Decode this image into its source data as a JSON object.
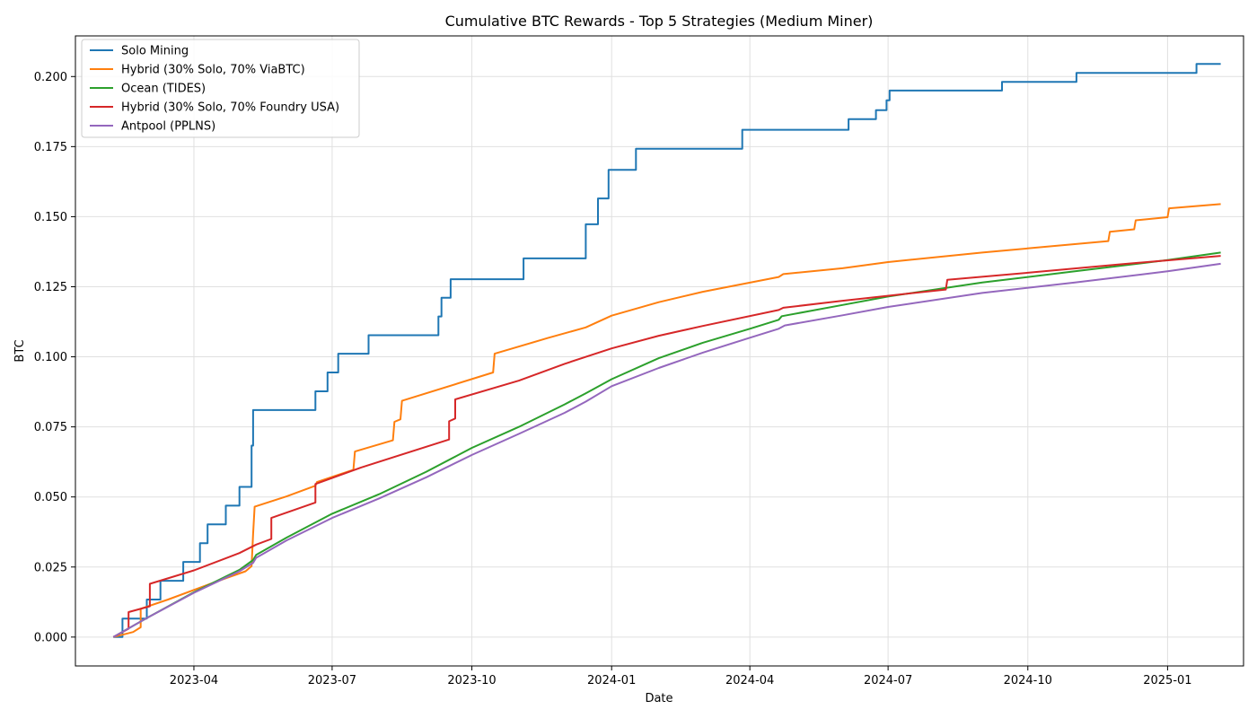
{
  "chart_data": {
    "type": "line",
    "title": "Cumulative BTC Rewards - Top 5 Strategies (Medium Miner)",
    "xlabel": "Date",
    "ylabel": "BTC",
    "xlim": [
      "2023-01-13",
      "2025-02-20"
    ],
    "ylim": [
      -0.0103,
      0.2145
    ],
    "x_ticks": [
      "2023-04",
      "2023-07",
      "2023-10",
      "2024-01",
      "2024-04",
      "2024-07",
      "2024-10",
      "2025-01"
    ],
    "y_ticks": [
      0.0,
      0.025,
      0.05,
      0.075,
      0.1,
      0.125,
      0.15,
      0.175,
      0.2
    ],
    "y_tick_labels": [
      "0.000",
      "0.025",
      "0.050",
      "0.075",
      "0.100",
      "0.125",
      "0.150",
      "0.175",
      "0.200"
    ],
    "grid": true,
    "legend_position": "top-left",
    "series": [
      {
        "name": "Solo Mining",
        "color": "#1f77b4",
        "step": true,
        "points": [
          [
            "2023-02-07",
            0.0
          ],
          [
            "2023-02-13",
            0.0
          ],
          [
            "2023-02-13",
            0.0066
          ],
          [
            "2023-03-01",
            0.0066
          ],
          [
            "2023-03-01",
            0.0134
          ],
          [
            "2023-03-10",
            0.0134
          ],
          [
            "2023-03-10",
            0.0201
          ],
          [
            "2023-03-25",
            0.0201
          ],
          [
            "2023-03-25",
            0.0268
          ],
          [
            "2023-04-05",
            0.0268
          ],
          [
            "2023-04-05",
            0.0335
          ],
          [
            "2023-04-10",
            0.0335
          ],
          [
            "2023-04-10",
            0.0402
          ],
          [
            "2023-04-22",
            0.0402
          ],
          [
            "2023-04-22",
            0.0469
          ],
          [
            "2023-05-01",
            0.0469
          ],
          [
            "2023-05-01",
            0.0536
          ],
          [
            "2023-05-09",
            0.0536
          ],
          [
            "2023-05-09",
            0.0683
          ],
          [
            "2023-05-10",
            0.0683
          ],
          [
            "2023-05-10",
            0.081
          ],
          [
            "2023-06-20",
            0.081
          ],
          [
            "2023-06-20",
            0.0877
          ],
          [
            "2023-06-28",
            0.0877
          ],
          [
            "2023-06-28",
            0.0944
          ],
          [
            "2023-07-05",
            0.0944
          ],
          [
            "2023-07-05",
            0.1011
          ],
          [
            "2023-07-25",
            0.1011
          ],
          [
            "2023-07-25",
            0.1077
          ],
          [
            "2023-09-09",
            0.1077
          ],
          [
            "2023-09-09",
            0.1144
          ],
          [
            "2023-09-11",
            0.1144
          ],
          [
            "2023-09-11",
            0.1211
          ],
          [
            "2023-09-17",
            0.1211
          ],
          [
            "2023-09-17",
            0.1277
          ],
          [
            "2023-11-04",
            0.1277
          ],
          [
            "2023-11-04",
            0.1351
          ],
          [
            "2023-12-15",
            0.1351
          ],
          [
            "2023-12-15",
            0.1473
          ],
          [
            "2023-12-23",
            0.1473
          ],
          [
            "2023-12-23",
            0.1565
          ],
          [
            "2023-12-30",
            0.1565
          ],
          [
            "2023-12-30",
            0.1667
          ],
          [
            "2024-01-17",
            0.1667
          ],
          [
            "2024-01-17",
            0.1742
          ],
          [
            "2024-03-27",
            0.1742
          ],
          [
            "2024-03-27",
            0.181
          ],
          [
            "2024-06-05",
            0.181
          ],
          [
            "2024-06-05",
            0.1848
          ],
          [
            "2024-06-23",
            0.1848
          ],
          [
            "2024-06-23",
            0.188
          ],
          [
            "2024-06-30",
            0.188
          ],
          [
            "2024-06-30",
            0.1915
          ],
          [
            "2024-07-02",
            0.1915
          ],
          [
            "2024-07-02",
            0.195
          ],
          [
            "2024-09-14",
            0.195
          ],
          [
            "2024-09-14",
            0.1981
          ],
          [
            "2024-11-02",
            0.1981
          ],
          [
            "2024-11-02",
            0.2013
          ],
          [
            "2025-01-20",
            0.2013
          ],
          [
            "2025-01-20",
            0.2045
          ],
          [
            "2025-02-05",
            0.2045
          ]
        ]
      },
      {
        "name": "Hybrid (30% Solo, 70% ViaBTC)",
        "color": "#ff7f0e",
        "step": false,
        "points": [
          [
            "2023-02-07",
            0.0
          ],
          [
            "2023-02-20",
            0.0018
          ],
          [
            "2023-02-25",
            0.0035
          ],
          [
            "2023-02-25",
            0.0101
          ],
          [
            "2023-03-15",
            0.0134
          ],
          [
            "2023-04-15",
            0.0196
          ],
          [
            "2023-05-05",
            0.0235
          ],
          [
            "2023-05-09",
            0.0253
          ],
          [
            "2023-05-10",
            0.0368
          ],
          [
            "2023-05-11",
            0.0465
          ],
          [
            "2023-06-01",
            0.0502
          ],
          [
            "2023-06-20",
            0.054
          ],
          [
            "2023-06-21",
            0.0553
          ],
          [
            "2023-07-15",
            0.0597
          ],
          [
            "2023-07-16",
            0.0662
          ],
          [
            "2023-08-10",
            0.0702
          ],
          [
            "2023-08-11",
            0.0768
          ],
          [
            "2023-08-15",
            0.0777
          ],
          [
            "2023-08-16",
            0.0843
          ],
          [
            "2023-10-15",
            0.0944
          ],
          [
            "2023-10-16",
            0.1011
          ],
          [
            "2023-11-20",
            0.1067
          ],
          [
            "2023-12-15",
            0.1105
          ],
          [
            "2024-01-01",
            0.1147
          ],
          [
            "2024-02-01",
            0.1195
          ],
          [
            "2024-03-01",
            0.1232
          ],
          [
            "2024-04-20",
            0.1285
          ],
          [
            "2024-04-23",
            0.1295
          ],
          [
            "2024-06-01",
            0.1316
          ],
          [
            "2024-07-01",
            0.1338
          ],
          [
            "2024-09-01",
            0.1372
          ],
          [
            "2024-11-23",
            0.1413
          ],
          [
            "2024-11-24",
            0.1446
          ],
          [
            "2024-12-10",
            0.1455
          ],
          [
            "2024-12-11",
            0.1487
          ],
          [
            "2025-01-01",
            0.1498
          ],
          [
            "2025-01-02",
            0.153
          ],
          [
            "2025-02-05",
            0.1545
          ]
        ]
      },
      {
        "name": "Ocean (TIDES)",
        "color": "#2ca02c",
        "step": false,
        "points": [
          [
            "2023-02-07",
            0.0
          ],
          [
            "2023-03-01",
            0.0068
          ],
          [
            "2023-04-01",
            0.016
          ],
          [
            "2023-05-01",
            0.024
          ],
          [
            "2023-05-10",
            0.0275
          ],
          [
            "2023-05-12",
            0.0293
          ],
          [
            "2023-06-01",
            0.0355
          ],
          [
            "2023-07-01",
            0.044
          ],
          [
            "2023-08-01",
            0.051
          ],
          [
            "2023-09-01",
            0.059
          ],
          [
            "2023-10-01",
            0.0675
          ],
          [
            "2023-11-01",
            0.075
          ],
          [
            "2023-12-01",
            0.083
          ],
          [
            "2023-12-15",
            0.087
          ],
          [
            "2024-01-01",
            0.092
          ],
          [
            "2024-02-01",
            0.0995
          ],
          [
            "2024-03-01",
            0.105
          ],
          [
            "2024-04-01",
            0.11
          ],
          [
            "2024-04-20",
            0.1132
          ],
          [
            "2024-04-22",
            0.1145
          ],
          [
            "2024-06-01",
            0.1185
          ],
          [
            "2024-07-01",
            0.1215
          ],
          [
            "2024-09-01",
            0.1265
          ],
          [
            "2024-11-01",
            0.1305
          ],
          [
            "2025-01-01",
            0.1345
          ],
          [
            "2025-02-05",
            0.1372
          ]
        ]
      },
      {
        "name": "Hybrid (30% Solo, 70% Foundry USA)",
        "color": "#d62728",
        "step": false,
        "points": [
          [
            "2023-02-07",
            0.0
          ],
          [
            "2023-02-17",
            0.003
          ],
          [
            "2023-02-17",
            0.0089
          ],
          [
            "2023-03-03",
            0.011
          ],
          [
            "2023-03-03",
            0.019
          ],
          [
            "2023-04-01",
            0.0238
          ],
          [
            "2023-05-01",
            0.03
          ],
          [
            "2023-05-12",
            0.033
          ],
          [
            "2023-05-22",
            0.035
          ],
          [
            "2023-05-22",
            0.0425
          ],
          [
            "2023-06-20",
            0.048
          ],
          [
            "2023-06-20",
            0.0546
          ],
          [
            "2023-07-20",
            0.0605
          ],
          [
            "2023-09-16",
            0.0705
          ],
          [
            "2023-09-16",
            0.077
          ],
          [
            "2023-09-20",
            0.078
          ],
          [
            "2023-09-20",
            0.0848
          ],
          [
            "2023-11-01",
            0.0915
          ],
          [
            "2023-12-01",
            0.0975
          ],
          [
            "2024-01-01",
            0.103
          ],
          [
            "2024-02-01",
            0.1075
          ],
          [
            "2024-03-01",
            0.111
          ],
          [
            "2024-04-20",
            0.1167
          ],
          [
            "2024-04-23",
            0.1175
          ],
          [
            "2024-06-01",
            0.12
          ],
          [
            "2024-08-08",
            0.124
          ],
          [
            "2024-08-09",
            0.1275
          ],
          [
            "2024-10-01",
            0.13
          ],
          [
            "2024-12-01",
            0.133
          ],
          [
            "2025-02-05",
            0.136
          ]
        ]
      },
      {
        "name": "Antpool (PPLNS)",
        "color": "#9467bd",
        "step": false,
        "points": [
          [
            "2023-02-07",
            0.0
          ],
          [
            "2023-03-01",
            0.0068
          ],
          [
            "2023-04-01",
            0.0158
          ],
          [
            "2023-05-01",
            0.0235
          ],
          [
            "2023-05-10",
            0.0265
          ],
          [
            "2023-05-12",
            0.0283
          ],
          [
            "2023-06-01",
            0.0345
          ],
          [
            "2023-07-01",
            0.0425
          ],
          [
            "2023-08-01",
            0.0495
          ],
          [
            "2023-09-01",
            0.057
          ],
          [
            "2023-10-01",
            0.065
          ],
          [
            "2023-11-01",
            0.0725
          ],
          [
            "2023-12-01",
            0.08
          ],
          [
            "2023-12-15",
            0.084
          ],
          [
            "2024-01-01",
            0.0895
          ],
          [
            "2024-02-01",
            0.096
          ],
          [
            "2024-03-01",
            0.1015
          ],
          [
            "2024-04-01",
            0.1068
          ],
          [
            "2024-04-20",
            0.11
          ],
          [
            "2024-04-24",
            0.1112
          ],
          [
            "2024-06-01",
            0.1148
          ],
          [
            "2024-07-01",
            0.1178
          ],
          [
            "2024-09-01",
            0.1228
          ],
          [
            "2024-11-01",
            0.1265
          ],
          [
            "2025-01-01",
            0.1305
          ],
          [
            "2025-02-05",
            0.1332
          ]
        ]
      }
    ]
  }
}
